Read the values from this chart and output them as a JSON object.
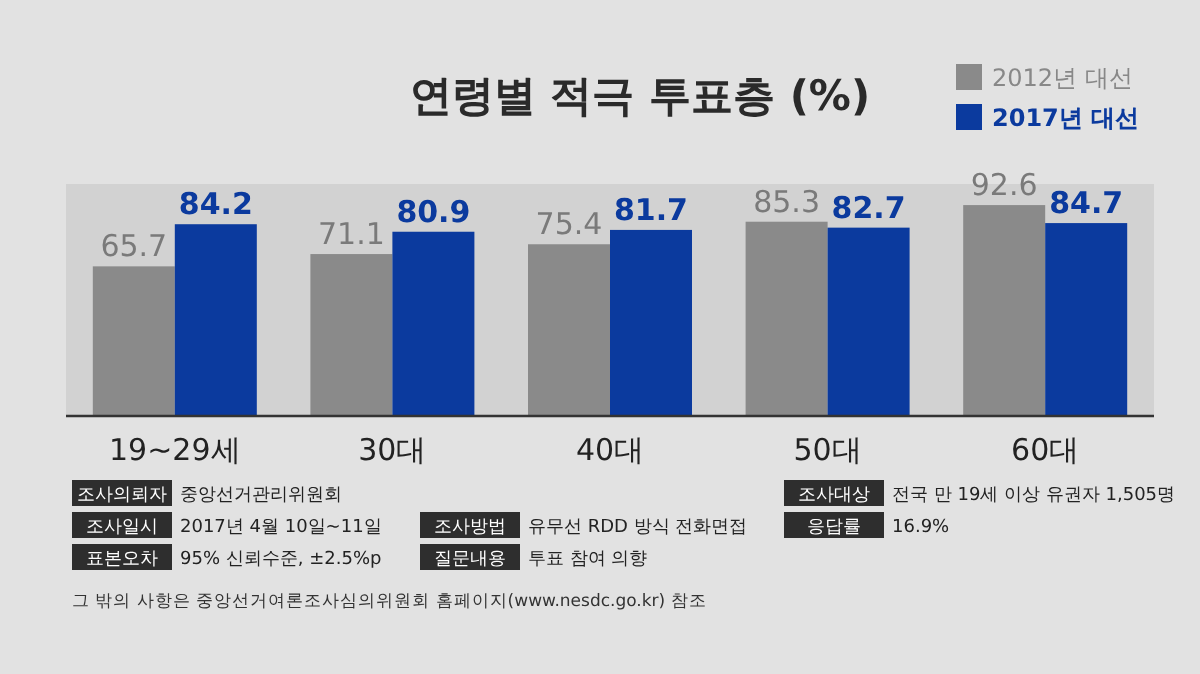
{
  "chart_data": {
    "type": "bar",
    "title": "연령별 적극 투표층 (%)",
    "categories": [
      "19~29세",
      "30대",
      "40대",
      "50대",
      "60대"
    ],
    "series": [
      {
        "name": "2012년 대선",
        "color": "#8a8a8a",
        "values": [
          65.7,
          71.1,
          75.4,
          85.3,
          92.6
        ]
      },
      {
        "name": "2017년 대선",
        "color": "#0b3a9e",
        "values": [
          84.2,
          80.9,
          81.7,
          82.7,
          84.7
        ]
      }
    ],
    "data_labels": true,
    "legend": "top right",
    "annotations": [
      "조사의뢰자",
      "중앙선거관리위원회",
      "조사일시",
      "2017년 4월 10일~11일",
      "표본오차",
      "95% 신뢰수준, ±2.5%p",
      "조사방법",
      "유무선 RDD 방식 전화면접",
      "질문내용",
      "투표 참여 의향",
      "조사대상",
      "전국 만 19세 이상 유권자 1,505명",
      "응답률",
      "16.9%",
      "그 밖의 사항은 중앙선거여론조사심의위원회 홈페이지(www.nesdc.go.kr) 참조"
    ]
  }
}
